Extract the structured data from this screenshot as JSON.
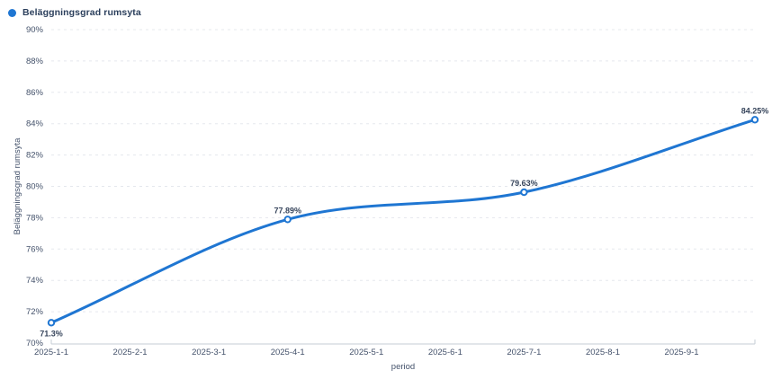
{
  "chart_data": {
    "type": "line",
    "title": "",
    "xlabel": "period",
    "ylabel": "Beläggningsgrad rumsyta",
    "x_tick_labels": [
      "2025-1-1",
      "2025-2-1",
      "2025-3-1",
      "2025-4-1",
      "2025-5-1",
      "2025-6-1",
      "2025-7-1",
      "2025-8-1",
      "2025-9-1"
    ],
    "y_tick_labels": [
      "70%",
      "72%",
      "74%",
      "76%",
      "78%",
      "80%",
      "82%",
      "84%",
      "86%",
      "88%",
      "90%"
    ],
    "ylim": [
      70,
      90
    ],
    "xlim": [
      0,
      8.93
    ],
    "grid": "horizontal-dashed",
    "legend_position": "top-left",
    "smooth": true,
    "series": [
      {
        "name": "Beläggningsgrad rumsyta",
        "color": "#1f76d2",
        "x": [
          0,
          3,
          6,
          8.93
        ],
        "values": [
          71.3,
          77.89,
          79.63,
          84.25
        ],
        "point_labels": [
          "71.3%",
          "77.89%",
          "79.63%",
          "84.25%"
        ],
        "label_placement": [
          "below",
          "above",
          "above",
          "above"
        ]
      }
    ]
  },
  "colors": {
    "line": "#1f76d2",
    "marker_fill": "#ffffff",
    "grid_line": "#e5e8ed",
    "axis_line": "#c6ccd6",
    "tick_text": "#44526b",
    "axis_title_text": "#44526b",
    "point_label_text": "#37455c",
    "legend_text": "#2b3f5c",
    "background": "#ffffff"
  }
}
